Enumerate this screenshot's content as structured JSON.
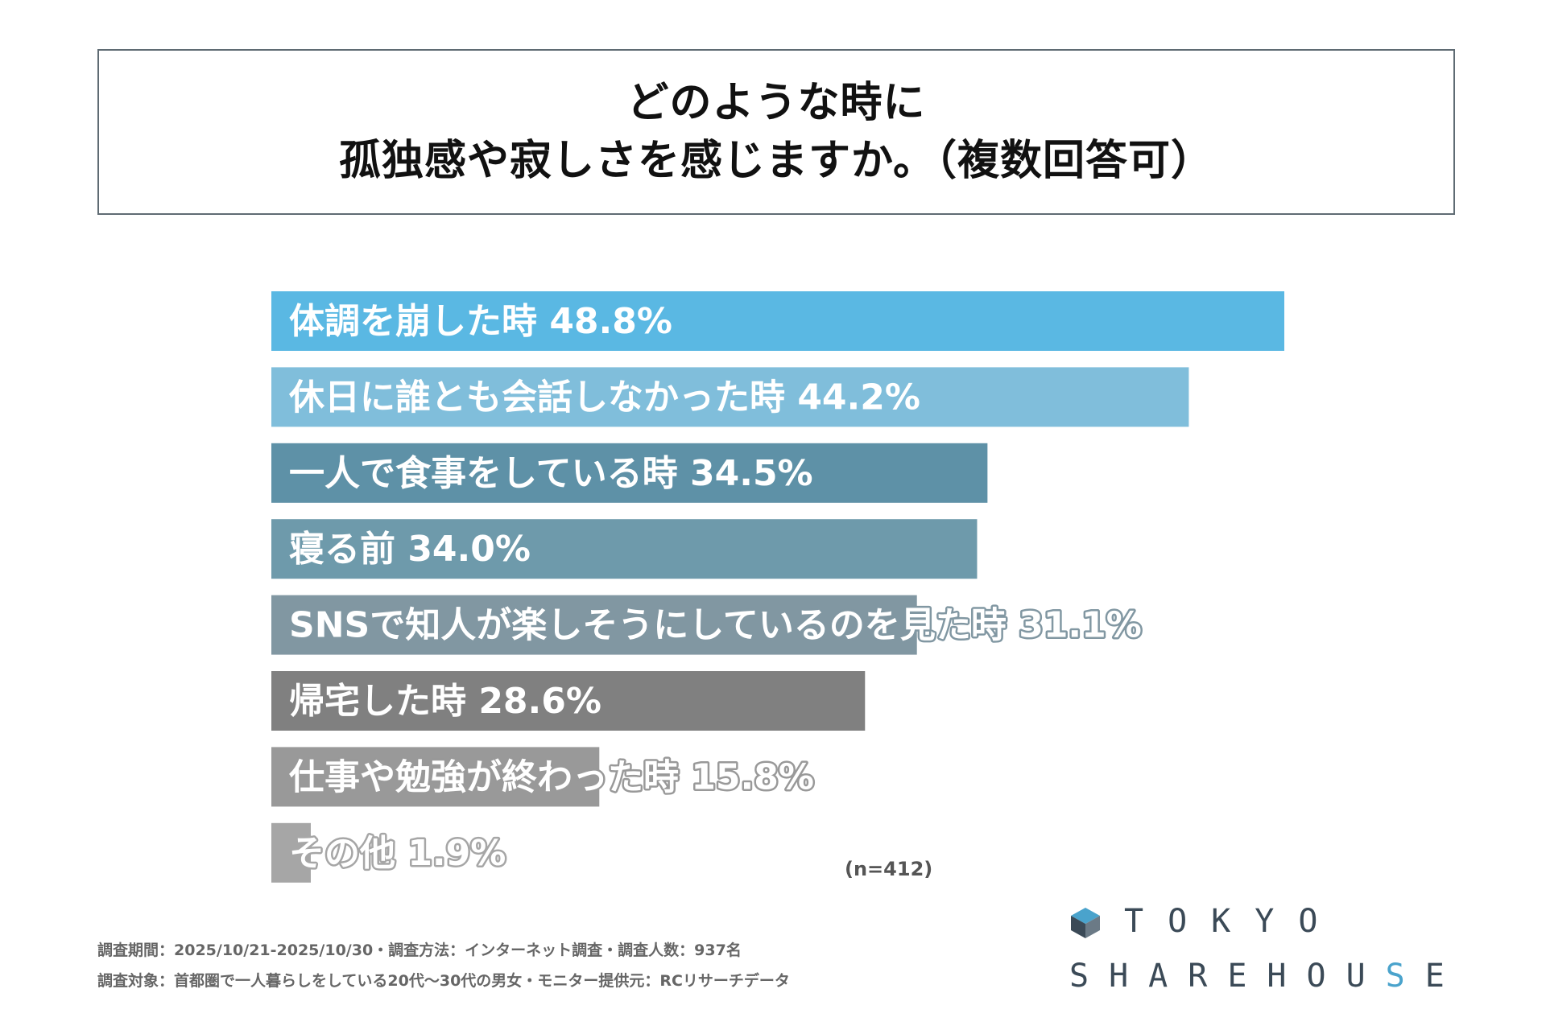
{
  "title": {
    "line1": "どのような時に",
    "line2": "孤独感や寂しさを感じますか。（複数回答可）"
  },
  "chart_data": {
    "type": "bar",
    "orientation": "horizontal",
    "title": "どのような時に孤独感や寂しさを感じますか。（複数回答可）",
    "categories": [
      "体調を崩した時",
      "休日に誰とも会話しなかった時",
      "一人で食事をしている時",
      "寝る前",
      "SNSで知人が楽しそうにしているのを見た時",
      "帰宅した時",
      "仕事や勉強が終わった時",
      "その他"
    ],
    "values": [
      48.8,
      44.2,
      34.5,
      34.0,
      31.1,
      28.6,
      15.8,
      1.9
    ],
    "value_labels": [
      "48.8%",
      "44.2%",
      "34.5%",
      "34.0%",
      "31.1%",
      "28.6%",
      "15.8%",
      "1.9%"
    ],
    "colors": [
      "#5ab8e3",
      "#80bedb",
      "#5e91a7",
      "#6e9aab",
      "#8197a2",
      "#808080",
      "#999999",
      "#a6a6a6"
    ],
    "unit": "%",
    "xlim": [
      0,
      48.8
    ],
    "n_note": "(n=412)"
  },
  "footer": {
    "line1": "調査期間：2025/10/21-2025/10/30・調査方法：インターネット調査・調査人数：937名",
    "line2": "調査対象：首都圏で一人暮らしをしている20代～30代の男女・モニター提供元：RCリサーチデータ"
  },
  "logo": {
    "top": "TOKYO",
    "bottom_part1": "SHAREHOU",
    "bottom_accent": "S",
    "bottom_part2": "E",
    "accent_color": "#4aa3cc",
    "icon": "house-cube-icon"
  }
}
